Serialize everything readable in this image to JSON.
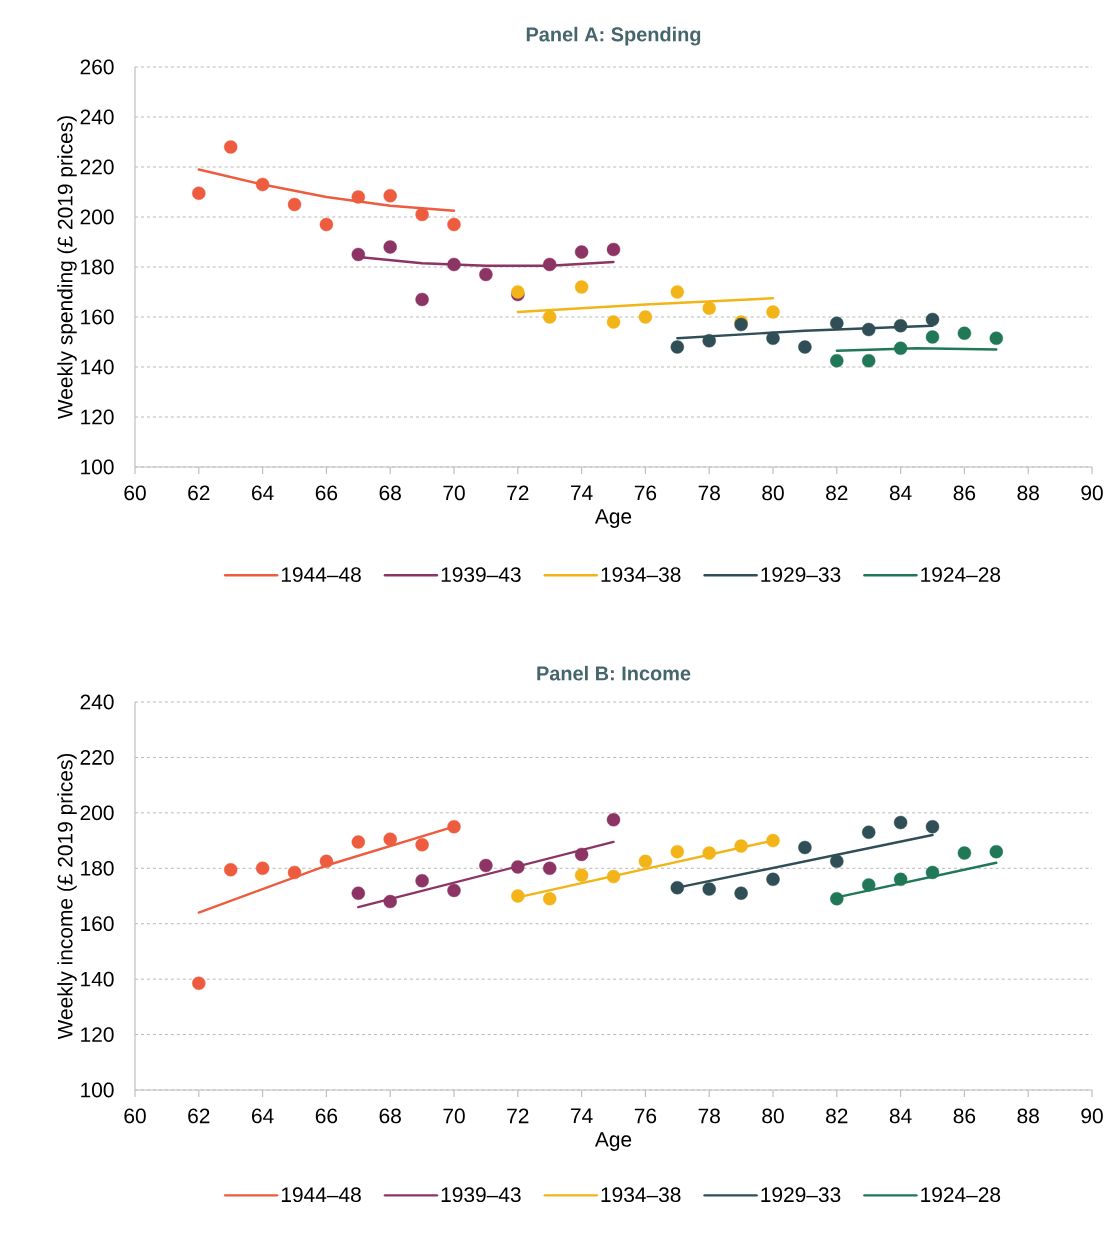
{
  "chart_data": [
    {
      "type": "scatter",
      "title": "Panel A: Spending",
      "xlabel": "Age",
      "ylabel": "Weekly spending (£ 2019 prices)",
      "xlim": [
        60,
        90
      ],
      "ylim": [
        100,
        260
      ],
      "xticks": [
        60,
        62,
        64,
        66,
        68,
        70,
        72,
        74,
        76,
        78,
        80,
        82,
        84,
        86,
        88,
        90
      ],
      "yticks": [
        100,
        120,
        140,
        160,
        180,
        200,
        220,
        240,
        260
      ],
      "grid": "y",
      "legend": "bottom",
      "marker": "circle",
      "series": [
        {
          "color": "#ee5c3f",
          "x": [
            62,
            63,
            64,
            65,
            66,
            67,
            68,
            69,
            70
          ],
          "values": [
            209.5,
            228,
            213,
            205,
            197,
            208,
            208.5,
            201,
            197
          ]
        },
        {
          "color": "#8c3464",
          "x": [
            67,
            68,
            69,
            70,
            71,
            72,
            73,
            74,
            75
          ],
          "values": [
            185,
            188,
            167,
            181,
            177,
            169,
            181,
            186,
            187
          ]
        },
        {
          "color": "#f2b418",
          "x": [
            72,
            73,
            74,
            75,
            76,
            77,
            78,
            79,
            80
          ],
          "values": [
            170,
            160,
            172,
            158,
            160,
            170,
            163.5,
            158,
            162
          ]
        },
        {
          "color": "#2f4e55",
          "x": [
            77,
            78,
            79,
            80,
            81,
            82,
            83,
            84,
            85
          ],
          "values": [
            148,
            150.5,
            157,
            151.5,
            148,
            157.5,
            155,
            156.5,
            159
          ]
        },
        {
          "color": "#217856",
          "x": [
            82,
            83,
            84,
            85,
            86,
            87
          ],
          "values": [
            142.5,
            142.5,
            147.5,
            152,
            153.5,
            151.5
          ]
        },
        {
          "type": "line",
          "marker": "none",
          "name": "1944–48",
          "color": "#ee5c3f",
          "x": [
            62,
            64,
            66,
            68,
            70
          ],
          "values": [
            219,
            213,
            208,
            204.5,
            202.5
          ]
        },
        {
          "type": "line",
          "marker": "none",
          "name": "1939–43",
          "color": "#8c3464",
          "x": [
            67,
            69,
            71,
            73,
            75
          ],
          "values": [
            184,
            181.5,
            180.5,
            180.5,
            182
          ]
        },
        {
          "type": "line",
          "marker": "none",
          "name": "1934–38",
          "color": "#f2b418",
          "x": [
            72,
            76,
            80
          ],
          "values": [
            162,
            165,
            167.5
          ]
        },
        {
          "type": "line",
          "marker": "none",
          "name": "1929–33",
          "color": "#2f4e55",
          "x": [
            77,
            81,
            85
          ],
          "values": [
            151.5,
            154.5,
            156.5
          ]
        },
        {
          "type": "line",
          "marker": "none",
          "name": "1924–28",
          "color": "#217856",
          "x": [
            82,
            84.5,
            87
          ],
          "values": [
            146.5,
            147.5,
            147
          ]
        }
      ]
    },
    {
      "type": "scatter",
      "title": "Panel B: Income",
      "xlabel": "Age",
      "ylabel": "Weekly income (£ 2019 prices)",
      "xlim": [
        60,
        90
      ],
      "ylim": [
        100,
        240
      ],
      "xticks": [
        60,
        62,
        64,
        66,
        68,
        70,
        72,
        74,
        76,
        78,
        80,
        82,
        84,
        86,
        88,
        90
      ],
      "yticks": [
        100,
        120,
        140,
        160,
        180,
        200,
        220,
        240
      ],
      "grid": "y",
      "legend": "bottom",
      "marker": "circle",
      "series": [
        {
          "color": "#ee5c3f",
          "x": [
            62,
            63,
            64,
            65,
            66,
            67,
            68,
            69,
            70
          ],
          "values": [
            138.5,
            179.5,
            180,
            178.5,
            182.5,
            189.5,
            190.5,
            188.5,
            195
          ]
        },
        {
          "color": "#8c3464",
          "x": [
            67,
            68,
            69,
            70,
            71,
            72,
            73,
            74,
            75
          ],
          "values": [
            171,
            168,
            175.5,
            172,
            181,
            180.5,
            180,
            185,
            197.5
          ]
        },
        {
          "color": "#f2b418",
          "x": [
            72,
            73,
            74,
            75,
            76,
            77,
            78,
            79,
            80
          ],
          "values": [
            170,
            169,
            177.5,
            177,
            182.5,
            186,
            185.5,
            188,
            190
          ]
        },
        {
          "color": "#2f4e55",
          "x": [
            77,
            78,
            79,
            80,
            81,
            82,
            83,
            84,
            85
          ],
          "values": [
            173,
            172.5,
            171,
            176,
            187.5,
            182.5,
            193,
            196.5,
            195
          ]
        },
        {
          "color": "#217856",
          "x": [
            82,
            83,
            84,
            85,
            86,
            87
          ],
          "values": [
            169,
            174,
            176,
            178.5,
            185.5,
            186
          ]
        },
        {
          "type": "line",
          "marker": "none",
          "name": "1944–48",
          "color": "#ee5c3f",
          "x": [
            62,
            66,
            70
          ],
          "values": [
            164,
            181,
            195
          ]
        },
        {
          "type": "line",
          "marker": "none",
          "name": "1939–43",
          "color": "#8c3464",
          "x": [
            67,
            75
          ],
          "values": [
            166,
            189.5
          ]
        },
        {
          "type": "line",
          "marker": "none",
          "name": "1934–38",
          "color": "#f2b418",
          "x": [
            72,
            80
          ],
          "values": [
            169.5,
            190
          ]
        },
        {
          "type": "line",
          "marker": "none",
          "name": "1929–33",
          "color": "#2f4e55",
          "x": [
            77,
            85
          ],
          "values": [
            173,
            192
          ]
        },
        {
          "type": "line",
          "marker": "none",
          "name": "1924–28",
          "color": "#217856",
          "x": [
            82,
            87
          ],
          "values": [
            169.5,
            182
          ]
        }
      ]
    }
  ]
}
